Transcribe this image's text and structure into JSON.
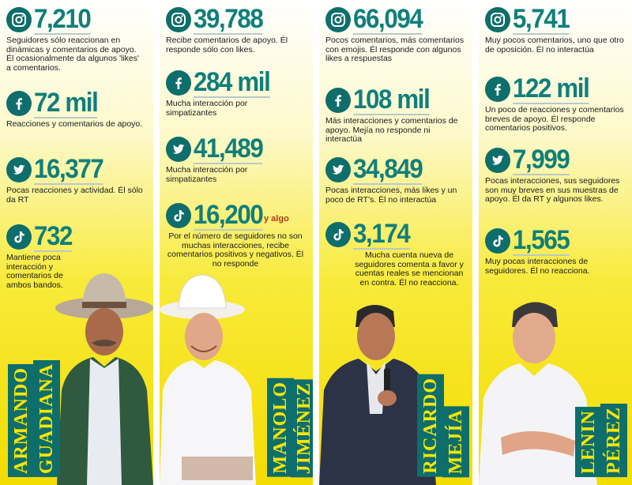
{
  "columns": [
    {
      "name_first": "ARMANDO",
      "name_last": "GUADIANA",
      "stats": [
        {
          "icon": "instagram-icon",
          "value": "7,210",
          "suffix": "",
          "desc": "Seguidores sólo reaccionan en dinámicas y comentarios de apoyo. Él ocasionalmente da algunos 'likes' a comentarios."
        },
        {
          "icon": "facebook-icon",
          "value": "72 mil",
          "suffix": "",
          "desc": "Reacciones y comentarios de apoyo."
        },
        {
          "icon": "twitter-icon",
          "value": "16,377",
          "suffix": "",
          "desc": "Pocas reacciones y actividad. Él sólo da RT"
        },
        {
          "icon": "tiktok-icon",
          "value": "732",
          "suffix": "",
          "desc": "Mantiene poca interacción y comentarios de ambos bandos."
        }
      ]
    },
    {
      "name_first": "MANOLO",
      "name_last": "JIMÉNEZ",
      "stats": [
        {
          "icon": "instagram-icon",
          "value": "39,788",
          "suffix": "",
          "desc": "Recibe comentarios de apoyo. Él responde sólo con likes."
        },
        {
          "icon": "facebook-icon",
          "value": "284 mil",
          "suffix": "",
          "desc": "Mucha interacción por simpatizantes"
        },
        {
          "icon": "twitter-icon",
          "value": "41,489",
          "suffix": "",
          "desc": "Mucha interacción por simpatizantes"
        },
        {
          "icon": "tiktok-icon",
          "value": "16,200",
          "suffix": "y algo",
          "desc": "Por el número de seguidores no son muchas interacciones, recibe comentarios positivos y negativos. Él no responde"
        }
      ]
    },
    {
      "name_first": "RICARDO",
      "name_last": "MEJÍA",
      "stats": [
        {
          "icon": "instagram-icon",
          "value": "66,094",
          "suffix": "",
          "desc": "Pocos comentarios, más comentarios con emojis. Él responde con algunos likes a respuestas"
        },
        {
          "icon": "facebook-icon",
          "value": "108 mil",
          "suffix": "",
          "desc": "Más interacciones y comentarios de apoyo. Mejía no responde ni interactúa"
        },
        {
          "icon": "twitter-icon",
          "value": "34,849",
          "suffix": "",
          "desc": "Pocas interacciones, más likes y un poco de RT's. Él no interactúa"
        },
        {
          "icon": "tiktok-icon",
          "value": "3,174",
          "suffix": "",
          "desc": "Mucha cuenta nueva de seguidores comenta a favor y cuentas reales se mencionan en contra. Él no reacciona."
        }
      ]
    },
    {
      "name_first": "LENIN",
      "name_last": "PÉREZ",
      "stats": [
        {
          "icon": "instagram-icon",
          "value": "5,741",
          "suffix": "",
          "desc": "Muy pocos comentarios, uno que otro de oposición. Él no interactúa"
        },
        {
          "icon": "facebook-icon",
          "value": "122 mil",
          "suffix": "",
          "desc": "Un poco de reacciones y comentarios breves de apoyo. Él responde comentarios positivos."
        },
        {
          "icon": "twitter-icon",
          "value": "7,999",
          "suffix": "",
          "desc": "Pocas interacciones, sus seguidores son muy breves en sus muestras de apoyo. Él da RT y algunos likes."
        },
        {
          "icon": "tiktok-icon",
          "value": "1,565",
          "suffix": "",
          "desc": "Muy pocas interacciones de seguidores. Él no reacciona."
        }
      ]
    }
  ]
}
